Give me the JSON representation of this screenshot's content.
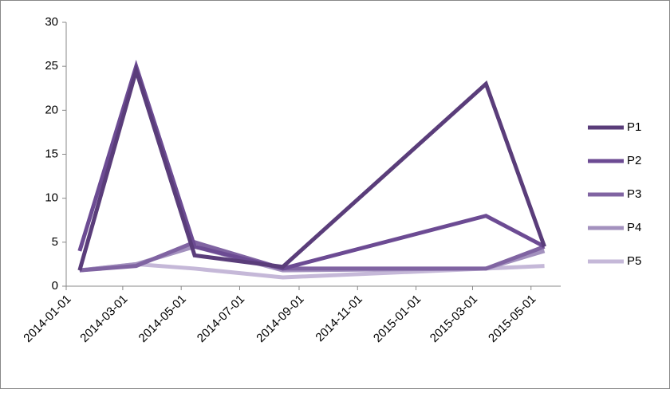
{
  "chart_data": {
    "type": "line",
    "x": [
      "2014-01-15",
      "2014-03-15",
      "2014-05-15",
      "2014-08-15",
      "2015-03-15",
      "2015-05-15"
    ],
    "series": [
      {
        "name": "P1",
        "color": "#5a3d7a",
        "values": [
          1.8,
          24.5,
          3.5,
          2.2,
          23,
          4.5
        ]
      },
      {
        "name": "P2",
        "color": "#6c4b93",
        "values": [
          4,
          25,
          4.5,
          2,
          8,
          4.5
        ]
      },
      {
        "name": "P3",
        "color": "#8064a2",
        "values": [
          1.8,
          2.3,
          5,
          2,
          2,
          4.5
        ]
      },
      {
        "name": "P4",
        "color": "#a391be",
        "values": [
          1.8,
          2.5,
          4.5,
          1.8,
          2,
          4
        ]
      },
      {
        "name": "P5",
        "color": "#c5b8d8",
        "values": [
          1.8,
          2.5,
          2,
          1,
          2,
          2.3
        ]
      }
    ],
    "xlim": [
      "2014-01-01",
      "2015-06-01"
    ],
    "xticks": [
      "2014-01-01",
      "2014-03-01",
      "2014-05-01",
      "2014-07-01",
      "2014-09-01",
      "2014-11-01",
      "2015-01-01",
      "2015-03-01",
      "2015-05-01"
    ],
    "ylim": [
      0,
      30
    ],
    "yticks": [
      0,
      5,
      10,
      15,
      20,
      25,
      30
    ],
    "grid": false,
    "legend": "right"
  }
}
